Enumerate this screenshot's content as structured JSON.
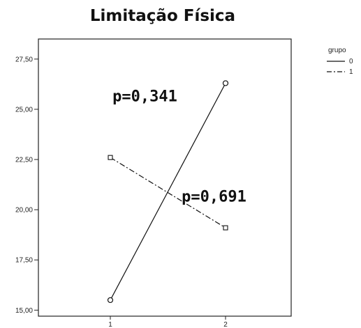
{
  "chart_data": {
    "type": "line",
    "title": "Limitação Física",
    "xlabel": "",
    "ylabel": "",
    "x": [
      1,
      2
    ],
    "x_tick_labels": [
      "1",
      "2"
    ],
    "ylim": [
      14.7,
      28.5
    ],
    "y_ticks": [
      15.0,
      17.5,
      20.0,
      22.5,
      25.0,
      27.5
    ],
    "y_tick_labels": [
      "15,00",
      "17,50",
      "20,00",
      "22,50",
      "25,00",
      "27,50"
    ],
    "grid": false,
    "legend": {
      "title": "grupo",
      "placement": "top-right",
      "entries": [
        "0",
        "1"
      ]
    },
    "series": [
      {
        "name": "0",
        "values": [
          15.5,
          26.3
        ],
        "line_style": "solid",
        "marker": "circle",
        "color": "#111111"
      },
      {
        "name": "1",
        "values": [
          22.6,
          19.1
        ],
        "line_style": "dash-dot",
        "marker": "square",
        "color": "#111111"
      }
    ],
    "annotations": [
      {
        "text": "p=0,341",
        "x": 1.3,
        "y": 25.4
      },
      {
        "text": "p=0,691",
        "x": 1.9,
        "y": 20.4
      }
    ]
  }
}
